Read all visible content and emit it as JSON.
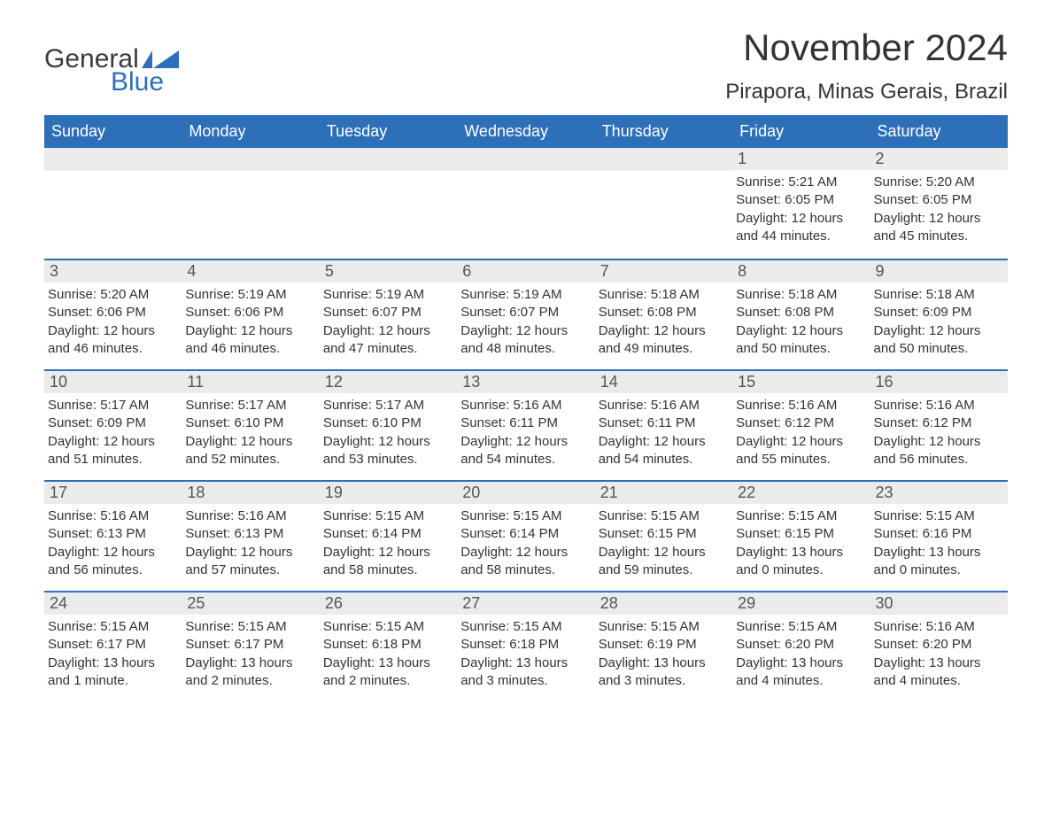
{
  "logo": {
    "text_general": "General",
    "text_blue": "Blue",
    "icon_color": "#2d6fb8"
  },
  "header": {
    "month_title": "November 2024",
    "location": "Pirapora, Minas Gerais, Brazil"
  },
  "colors": {
    "header_bg": "#2d6fb8",
    "header_text": "#ffffff",
    "daynum_bg": "#ebebeb",
    "row_border": "#2d6fb8",
    "body_text": "#333333"
  },
  "day_labels": [
    "Sunday",
    "Monday",
    "Tuesday",
    "Wednesday",
    "Thursday",
    "Friday",
    "Saturday"
  ],
  "weeks": [
    [
      {
        "blank": true
      },
      {
        "blank": true
      },
      {
        "blank": true
      },
      {
        "blank": true
      },
      {
        "blank": true
      },
      {
        "num": "1",
        "sunrise": "Sunrise: 5:21 AM",
        "sunset": "Sunset: 6:05 PM",
        "daylight": "Daylight: 12 hours and 44 minutes."
      },
      {
        "num": "2",
        "sunrise": "Sunrise: 5:20 AM",
        "sunset": "Sunset: 6:05 PM",
        "daylight": "Daylight: 12 hours and 45 minutes."
      }
    ],
    [
      {
        "num": "3",
        "sunrise": "Sunrise: 5:20 AM",
        "sunset": "Sunset: 6:06 PM",
        "daylight": "Daylight: 12 hours and 46 minutes."
      },
      {
        "num": "4",
        "sunrise": "Sunrise: 5:19 AM",
        "sunset": "Sunset: 6:06 PM",
        "daylight": "Daylight: 12 hours and 46 minutes."
      },
      {
        "num": "5",
        "sunrise": "Sunrise: 5:19 AM",
        "sunset": "Sunset: 6:07 PM",
        "daylight": "Daylight: 12 hours and 47 minutes."
      },
      {
        "num": "6",
        "sunrise": "Sunrise: 5:19 AM",
        "sunset": "Sunset: 6:07 PM",
        "daylight": "Daylight: 12 hours and 48 minutes."
      },
      {
        "num": "7",
        "sunrise": "Sunrise: 5:18 AM",
        "sunset": "Sunset: 6:08 PM",
        "daylight": "Daylight: 12 hours and 49 minutes."
      },
      {
        "num": "8",
        "sunrise": "Sunrise: 5:18 AM",
        "sunset": "Sunset: 6:08 PM",
        "daylight": "Daylight: 12 hours and 50 minutes."
      },
      {
        "num": "9",
        "sunrise": "Sunrise: 5:18 AM",
        "sunset": "Sunset: 6:09 PM",
        "daylight": "Daylight: 12 hours and 50 minutes."
      }
    ],
    [
      {
        "num": "10",
        "sunrise": "Sunrise: 5:17 AM",
        "sunset": "Sunset: 6:09 PM",
        "daylight": "Daylight: 12 hours and 51 minutes."
      },
      {
        "num": "11",
        "sunrise": "Sunrise: 5:17 AM",
        "sunset": "Sunset: 6:10 PM",
        "daylight": "Daylight: 12 hours and 52 minutes."
      },
      {
        "num": "12",
        "sunrise": "Sunrise: 5:17 AM",
        "sunset": "Sunset: 6:10 PM",
        "daylight": "Daylight: 12 hours and 53 minutes."
      },
      {
        "num": "13",
        "sunrise": "Sunrise: 5:16 AM",
        "sunset": "Sunset: 6:11 PM",
        "daylight": "Daylight: 12 hours and 54 minutes."
      },
      {
        "num": "14",
        "sunrise": "Sunrise: 5:16 AM",
        "sunset": "Sunset: 6:11 PM",
        "daylight": "Daylight: 12 hours and 54 minutes."
      },
      {
        "num": "15",
        "sunrise": "Sunrise: 5:16 AM",
        "sunset": "Sunset: 6:12 PM",
        "daylight": "Daylight: 12 hours and 55 minutes."
      },
      {
        "num": "16",
        "sunrise": "Sunrise: 5:16 AM",
        "sunset": "Sunset: 6:12 PM",
        "daylight": "Daylight: 12 hours and 56 minutes."
      }
    ],
    [
      {
        "num": "17",
        "sunrise": "Sunrise: 5:16 AM",
        "sunset": "Sunset: 6:13 PM",
        "daylight": "Daylight: 12 hours and 56 minutes."
      },
      {
        "num": "18",
        "sunrise": "Sunrise: 5:16 AM",
        "sunset": "Sunset: 6:13 PM",
        "daylight": "Daylight: 12 hours and 57 minutes."
      },
      {
        "num": "19",
        "sunrise": "Sunrise: 5:15 AM",
        "sunset": "Sunset: 6:14 PM",
        "daylight": "Daylight: 12 hours and 58 minutes."
      },
      {
        "num": "20",
        "sunrise": "Sunrise: 5:15 AM",
        "sunset": "Sunset: 6:14 PM",
        "daylight": "Daylight: 12 hours and 58 minutes."
      },
      {
        "num": "21",
        "sunrise": "Sunrise: 5:15 AM",
        "sunset": "Sunset: 6:15 PM",
        "daylight": "Daylight: 12 hours and 59 minutes."
      },
      {
        "num": "22",
        "sunrise": "Sunrise: 5:15 AM",
        "sunset": "Sunset: 6:15 PM",
        "daylight": "Daylight: 13 hours and 0 minutes."
      },
      {
        "num": "23",
        "sunrise": "Sunrise: 5:15 AM",
        "sunset": "Sunset: 6:16 PM",
        "daylight": "Daylight: 13 hours and 0 minutes."
      }
    ],
    [
      {
        "num": "24",
        "sunrise": "Sunrise: 5:15 AM",
        "sunset": "Sunset: 6:17 PM",
        "daylight": "Daylight: 13 hours and 1 minute."
      },
      {
        "num": "25",
        "sunrise": "Sunrise: 5:15 AM",
        "sunset": "Sunset: 6:17 PM",
        "daylight": "Daylight: 13 hours and 2 minutes."
      },
      {
        "num": "26",
        "sunrise": "Sunrise: 5:15 AM",
        "sunset": "Sunset: 6:18 PM",
        "daylight": "Daylight: 13 hours and 2 minutes."
      },
      {
        "num": "27",
        "sunrise": "Sunrise: 5:15 AM",
        "sunset": "Sunset: 6:18 PM",
        "daylight": "Daylight: 13 hours and 3 minutes."
      },
      {
        "num": "28",
        "sunrise": "Sunrise: 5:15 AM",
        "sunset": "Sunset: 6:19 PM",
        "daylight": "Daylight: 13 hours and 3 minutes."
      },
      {
        "num": "29",
        "sunrise": "Sunrise: 5:15 AM",
        "sunset": "Sunset: 6:20 PM",
        "daylight": "Daylight: 13 hours and 4 minutes."
      },
      {
        "num": "30",
        "sunrise": "Sunrise: 5:16 AM",
        "sunset": "Sunset: 6:20 PM",
        "daylight": "Daylight: 13 hours and 4 minutes."
      }
    ]
  ]
}
